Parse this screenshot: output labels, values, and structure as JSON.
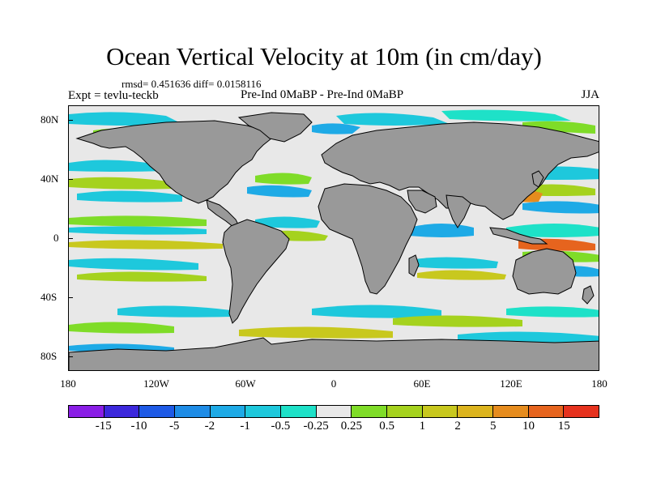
{
  "title": "Ocean Vertical Velocity at 10m (in cm/day)",
  "stats": "rmsd= 0.451636 diff= 0.0158116",
  "expt": "Expt = tevlu-teckb",
  "comparison": "Pre-Ind 0MaBP - Pre-Ind 0MaBP",
  "season": "JJA",
  "lat_labels": [
    "80N",
    "40N",
    "0",
    "40S",
    "80S"
  ],
  "lon_labels": [
    "180",
    "120W",
    "60W",
    "0",
    "60E",
    "120E",
    "180"
  ],
  "colorbar": {
    "colors": [
      "#8a1ee6",
      "#3c28dc",
      "#1e5ae6",
      "#1e8ce6",
      "#1eaae6",
      "#1ec8dc",
      "#1ee1c8",
      "#e8e8e8",
      "#7fdc28",
      "#a5d21e",
      "#c8c81e",
      "#dcb41e",
      "#e68c1e",
      "#e6641e",
      "#e6321e"
    ],
    "labels": [
      "-15",
      "-10",
      "-5",
      "-2",
      "-1",
      "-0.5",
      "-0.25",
      "0.25",
      "0.5",
      "1",
      "2",
      "5",
      "10",
      "15"
    ]
  },
  "land_color": "#999999",
  "ocean_neutral_color": "#e8e8e8"
}
